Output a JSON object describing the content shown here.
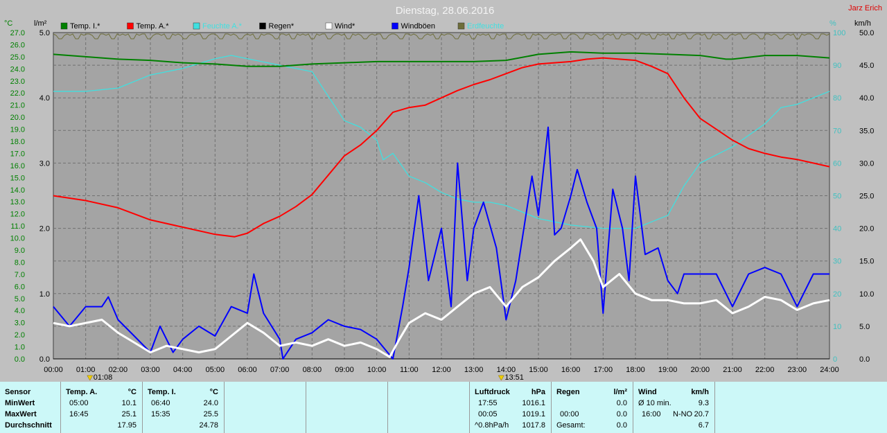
{
  "title": "Dienstag, 28.06.2016",
  "author": "Jarz Erich",
  "colors": {
    "background": "#c0c0c0",
    "plot_background": "#a4a4a4",
    "grid": "#707070",
    "temp_inside": "#008000",
    "temp_outside": "#ff0000",
    "humidity": "#40e0e0",
    "rain": "#000000",
    "wind": "#ffffff",
    "gusts": "#0000ff",
    "lightning": "#6e6e3a",
    "table_bg": "#ccf8f8"
  },
  "axes": {
    "left_temp_unit": "°C",
    "left_rain_unit": "l/m²",
    "right_hum_unit": "%",
    "right_wind_unit": "km/h",
    "temp_ticks": [
      "27.0",
      "26.0",
      "25.0",
      "24.0",
      "23.0",
      "22.0",
      "21.0",
      "20.0",
      "19.0",
      "18.0",
      "17.0",
      "16.0",
      "15.0",
      "14.0",
      "13.0",
      "12.0",
      "11.0",
      "10.0",
      "9.0",
      "8.0",
      "7.0",
      "6.0",
      "5.0",
      "4.0",
      "3.0",
      "2.0",
      "1.0",
      "0.0"
    ],
    "rain_ticks": [
      "5.0",
      "4.0",
      "3.0",
      "2.0",
      "1.0",
      "0.0"
    ],
    "hum_ticks": [
      "100",
      "90",
      "80",
      "70",
      "60",
      "50",
      "40",
      "30",
      "20",
      "10",
      "0"
    ],
    "wind_ticks": [
      "50.0",
      "45.0",
      "40.0",
      "35.0",
      "30.0",
      "25.0",
      "20.0",
      "15.0",
      "10.0",
      "5.0",
      "0.0"
    ],
    "time_ticks": [
      "00:00",
      "01:00",
      "02:00",
      "03:00",
      "04:00",
      "05:00",
      "06:00",
      "07:00",
      "08:00",
      "09:00",
      "10:00",
      "11:00",
      "12:00",
      "13:00",
      "14:00",
      "15:00",
      "16:00",
      "17:00",
      "18:00",
      "19:00",
      "20:00",
      "21:00",
      "22:00",
      "23:00",
      "24:00"
    ],
    "sun_markers": [
      {
        "time": 1.13,
        "label": "01:08"
      },
      {
        "time": 13.85,
        "label": "13:51"
      }
    ]
  },
  "legend": [
    {
      "label": "Temp. I.*",
      "color": "#008000",
      "label_color": "#000000"
    },
    {
      "label": "Temp. A.*",
      "color": "#ff0000",
      "label_color": "#000000"
    },
    {
      "label": "Feuchte A.*",
      "color": "#40e0e0",
      "label_color": "#40e0e0"
    },
    {
      "label": "Regen*",
      "color": "#000000",
      "label_color": "#000000"
    },
    {
      "label": "Wind*",
      "color": "#ffffff",
      "label_color": "#000000"
    },
    {
      "label": "Windböen",
      "color": "#0000ff",
      "label_color": "#000000"
    },
    {
      "label": "Erdfeuchte",
      "color": "#6e6e3a",
      "label_color": "#40e0e0"
    }
  ],
  "chart_data": {
    "type": "line",
    "title": "Dienstag, 28.06.2016",
    "x_unit": "hour",
    "xlim": [
      0,
      24
    ],
    "y_left_temp_lim": [
      0,
      27
    ],
    "y_left_rain_lim": [
      0,
      5
    ],
    "y_right_hum_lim": [
      0,
      100
    ],
    "y_right_wind_lim": [
      0,
      50
    ],
    "grid": true,
    "series": [
      {
        "name": "Temp. I.*",
        "axis": "temp",
        "color": "#008000",
        "points": [
          [
            0,
            25.2
          ],
          [
            1,
            25.0
          ],
          [
            2,
            24.8
          ],
          [
            3,
            24.7
          ],
          [
            4,
            24.5
          ],
          [
            5,
            24.4
          ],
          [
            6,
            24.2
          ],
          [
            7,
            24.2
          ],
          [
            8,
            24.4
          ],
          [
            9,
            24.5
          ],
          [
            10,
            24.6
          ],
          [
            11,
            24.6
          ],
          [
            12,
            24.6
          ],
          [
            13,
            24.6
          ],
          [
            14,
            24.7
          ],
          [
            15,
            25.2
          ],
          [
            16,
            25.4
          ],
          [
            17,
            25.3
          ],
          [
            18,
            25.3
          ],
          [
            19,
            25.2
          ],
          [
            20,
            25.1
          ],
          [
            20.8,
            24.8
          ],
          [
            21,
            24.8
          ],
          [
            22,
            25.1
          ],
          [
            23,
            25.1
          ],
          [
            24,
            24.9
          ]
        ]
      },
      {
        "name": "Temp. A.*",
        "axis": "temp",
        "color": "#ff0000",
        "points": [
          [
            0,
            13.5
          ],
          [
            1,
            13.1
          ],
          [
            2,
            12.5
          ],
          [
            3,
            11.5
          ],
          [
            4,
            10.9
          ],
          [
            5,
            10.3
          ],
          [
            5.6,
            10.1
          ],
          [
            6,
            10.4
          ],
          [
            6.5,
            11.2
          ],
          [
            7,
            11.8
          ],
          [
            7.5,
            12.6
          ],
          [
            8,
            13.6
          ],
          [
            8.5,
            15.2
          ],
          [
            9,
            16.8
          ],
          [
            9.5,
            17.7
          ],
          [
            10,
            18.9
          ],
          [
            10.5,
            20.4
          ],
          [
            11,
            20.8
          ],
          [
            11.5,
            21.0
          ],
          [
            12,
            21.6
          ],
          [
            12.5,
            22.2
          ],
          [
            13,
            22.7
          ],
          [
            13.5,
            23.1
          ],
          [
            14,
            23.6
          ],
          [
            14.5,
            24.1
          ],
          [
            15,
            24.4
          ],
          [
            15.5,
            24.5
          ],
          [
            16,
            24.6
          ],
          [
            16.5,
            24.8
          ],
          [
            17,
            24.9
          ],
          [
            17.5,
            24.8
          ],
          [
            18,
            24.7
          ],
          [
            18.5,
            24.2
          ],
          [
            19,
            23.6
          ],
          [
            19.5,
            21.6
          ],
          [
            20,
            19.9
          ],
          [
            20.5,
            19.0
          ],
          [
            21,
            18.1
          ],
          [
            21.5,
            17.4
          ],
          [
            22,
            17.0
          ],
          [
            22.5,
            16.7
          ],
          [
            23,
            16.5
          ],
          [
            23.5,
            16.2
          ],
          [
            24,
            15.9
          ]
        ]
      },
      {
        "name": "Feuchte A.*",
        "axis": "hum",
        "color": "#40e0e0",
        "points": [
          [
            0,
            82
          ],
          [
            1,
            82
          ],
          [
            2,
            83
          ],
          [
            3,
            87
          ],
          [
            4,
            89
          ],
          [
            5,
            92
          ],
          [
            5.5,
            93
          ],
          [
            6,
            92
          ],
          [
            7,
            90
          ],
          [
            8,
            88
          ],
          [
            9,
            73
          ],
          [
            9.5,
            71
          ],
          [
            10,
            67
          ],
          [
            10.2,
            61
          ],
          [
            10.5,
            63
          ],
          [
            11,
            56
          ],
          [
            11.5,
            54
          ],
          [
            12,
            51
          ],
          [
            12.5,
            49
          ],
          [
            13,
            48
          ],
          [
            13.5,
            48
          ],
          [
            14,
            47
          ],
          [
            14.5,
            45
          ],
          [
            15,
            43
          ],
          [
            16,
            41
          ],
          [
            17,
            40
          ],
          [
            18,
            40
          ],
          [
            18.5,
            42
          ],
          [
            19,
            44
          ],
          [
            19.5,
            53
          ],
          [
            20,
            60
          ],
          [
            21,
            65
          ],
          [
            22,
            72
          ],
          [
            22.5,
            77
          ],
          [
            23,
            78
          ],
          [
            24,
            82
          ]
        ]
      },
      {
        "name": "Regen*",
        "axis": "rain",
        "color": "#000000",
        "points": [
          [
            0,
            0
          ],
          [
            24,
            0
          ]
        ]
      },
      {
        "name": "Wind*",
        "axis": "wind",
        "color": "#ffffff",
        "points": [
          [
            0,
            5.5
          ],
          [
            0.5,
            5
          ],
          [
            1,
            5.5
          ],
          [
            1.5,
            6
          ],
          [
            2,
            4
          ],
          [
            2.5,
            2.5
          ],
          [
            3,
            1
          ],
          [
            3.5,
            2
          ],
          [
            4,
            1.5
          ],
          [
            4.5,
            1
          ],
          [
            5,
            1.5
          ],
          [
            5.5,
            3.5
          ],
          [
            6,
            5.5
          ],
          [
            6.5,
            4
          ],
          [
            7,
            2
          ],
          [
            7.5,
            2.5
          ],
          [
            8,
            2
          ],
          [
            8.5,
            3
          ],
          [
            9,
            2
          ],
          [
            9.5,
            2.5
          ],
          [
            10,
            1.5
          ],
          [
            10.4,
            0.3
          ],
          [
            10.7,
            3
          ],
          [
            11,
            5.5
          ],
          [
            11.5,
            7
          ],
          [
            12,
            6
          ],
          [
            12.5,
            8
          ],
          [
            13,
            10
          ],
          [
            13.5,
            11
          ],
          [
            14,
            8
          ],
          [
            14.5,
            11
          ],
          [
            15,
            12.5
          ],
          [
            15.5,
            15
          ],
          [
            16,
            17
          ],
          [
            16.3,
            18.3
          ],
          [
            16.7,
            15
          ],
          [
            17,
            11
          ],
          [
            17.5,
            13
          ],
          [
            18,
            10
          ],
          [
            18.5,
            9
          ],
          [
            19,
            9
          ],
          [
            19.5,
            8.5
          ],
          [
            20,
            8.5
          ],
          [
            20.5,
            9
          ],
          [
            21,
            7
          ],
          [
            21.5,
            8
          ],
          [
            22,
            9.5
          ],
          [
            22.5,
            9
          ],
          [
            23,
            7.5
          ],
          [
            23.5,
            8.5
          ],
          [
            24,
            9
          ]
        ]
      },
      {
        "name": "Windböen",
        "axis": "wind",
        "color": "#0000ff",
        "points": [
          [
            0,
            8
          ],
          [
            0.5,
            5
          ],
          [
            1,
            8
          ],
          [
            1.5,
            8
          ],
          [
            1.7,
            9.5
          ],
          [
            2,
            6
          ],
          [
            2.5,
            3.5
          ],
          [
            3,
            1
          ],
          [
            3.3,
            5
          ],
          [
            3.7,
            1
          ],
          [
            4,
            3
          ],
          [
            4.5,
            5
          ],
          [
            5,
            3.5
          ],
          [
            5.5,
            8
          ],
          [
            6,
            7
          ],
          [
            6.2,
            13
          ],
          [
            6.5,
            7
          ],
          [
            7,
            3
          ],
          [
            7.1,
            0
          ],
          [
            7.5,
            3
          ],
          [
            8,
            4
          ],
          [
            8.5,
            6
          ],
          [
            9,
            5
          ],
          [
            9.5,
            4.5
          ],
          [
            10,
            3
          ],
          [
            10.5,
            0
          ],
          [
            10.8,
            8
          ],
          [
            11,
            14
          ],
          [
            11.3,
            25
          ],
          [
            11.6,
            12
          ],
          [
            12,
            20
          ],
          [
            12.3,
            8
          ],
          [
            12.5,
            30
          ],
          [
            12.8,
            12
          ],
          [
            13,
            20
          ],
          [
            13.3,
            24
          ],
          [
            13.7,
            17
          ],
          [
            14,
            6
          ],
          [
            14.3,
            12
          ],
          [
            14.8,
            28
          ],
          [
            15,
            22
          ],
          [
            15.3,
            35.5
          ],
          [
            15.5,
            19
          ],
          [
            15.7,
            20
          ],
          [
            16,
            25
          ],
          [
            16.2,
            29
          ],
          [
            16.5,
            24
          ],
          [
            16.8,
            20
          ],
          [
            17,
            7
          ],
          [
            17.3,
            26
          ],
          [
            17.6,
            20
          ],
          [
            17.8,
            12
          ],
          [
            18,
            28
          ],
          [
            18.3,
            16
          ],
          [
            18.7,
            17
          ],
          [
            19,
            12
          ],
          [
            19.3,
            10
          ],
          [
            19.5,
            13
          ],
          [
            20,
            13
          ],
          [
            20.5,
            13
          ],
          [
            21,
            8
          ],
          [
            21.5,
            13
          ],
          [
            22,
            14
          ],
          [
            22.5,
            13
          ],
          [
            23,
            8
          ],
          [
            23.5,
            13
          ],
          [
            24,
            13
          ]
        ]
      }
    ]
  },
  "table": {
    "sensor_col": {
      "header": "Sensor",
      "rows": [
        "MinWert",
        "MaxWert",
        "Durchschnitt"
      ]
    },
    "temp_a": {
      "header": "Temp. A.",
      "unit": "°C",
      "min_time": "05:00",
      "min_val": "10.1",
      "max_time": "16:45",
      "max_val": "25.1",
      "avg": "17.95"
    },
    "temp_i": {
      "header": "Temp. I.",
      "unit": "°C",
      "min_time": "06:40",
      "min_val": "24.0",
      "max_time": "15:35",
      "max_val": "25.5",
      "avg": "24.78"
    },
    "pressure": {
      "header": "Luftdruck",
      "unit": "hPa",
      "min_time": "17:55",
      "min_val": "1016.1",
      "max_time": "00:05",
      "max_val": "1019.1",
      "trend": "^0.8hPa/h",
      "avg": "1017.8"
    },
    "rain": {
      "header": "Regen",
      "unit": "l/m²",
      "row1_val": "0.0",
      "row2_time": "00:00",
      "row2_val": "0.0",
      "row3_label": "Gesamt:",
      "row3_val": "0.0"
    },
    "wind": {
      "header": "Wind",
      "unit": "km/h",
      "row1_label": "Ø 10 min.",
      "row1_val": "9.3",
      "row2_time": "16:00",
      "row2_dir": "N-NO",
      "row2_val": "20.7",
      "row3_val": "6.7"
    }
  }
}
